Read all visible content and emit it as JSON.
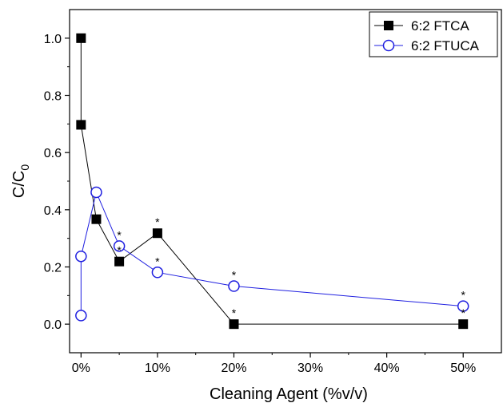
{
  "chart_data": {
    "type": "scatter",
    "title": "",
    "xlabel": "Cleaning Agent (%v/v)",
    "ylabel_main": "C/C",
    "ylabel_sub": "0",
    "xlim": [
      -1.5,
      55
    ],
    "ylim": [
      -0.1,
      1.1
    ],
    "x_ticks": [
      0,
      10,
      20,
      30,
      40,
      50
    ],
    "x_tick_labels": [
      "0%",
      "10%",
      "20%",
      "30%",
      "40%",
      "50%"
    ],
    "y_ticks": [
      0.0,
      0.2,
      0.4,
      0.6,
      0.8,
      1.0
    ],
    "y_tick_labels": [
      "0.0",
      "0.2",
      "0.4",
      "0.6",
      "0.8",
      "1.0"
    ],
    "grid": false,
    "legend_position": "top-right",
    "series": [
      {
        "name": "6:2 FTCA",
        "marker": "square-filled",
        "color": "#000000",
        "points": [
          {
            "x": 0,
            "y": 1.0,
            "star": false
          },
          {
            "x": 0,
            "y": 0.697,
            "star": false
          },
          {
            "x": 2,
            "y": 0.367,
            "star": false
          },
          {
            "x": 5,
            "y": 0.219,
            "star": true
          },
          {
            "x": 10,
            "y": 0.318,
            "star": true
          },
          {
            "x": 20,
            "y": 0.0,
            "star": true
          },
          {
            "x": 50,
            "y": 0.0,
            "star": true
          }
        ]
      },
      {
        "name": "6:2 FTUCA",
        "marker": "circle-open",
        "color": "#1f1fe0",
        "points": [
          {
            "x": 0,
            "y": 0.03,
            "star": false
          },
          {
            "x": 0,
            "y": 0.237,
            "star": false
          },
          {
            "x": 2,
            "y": 0.461,
            "star": false
          },
          {
            "x": 5,
            "y": 0.273,
            "star": true
          },
          {
            "x": 10,
            "y": 0.181,
            "star": true
          },
          {
            "x": 20,
            "y": 0.133,
            "star": true
          },
          {
            "x": 50,
            "y": 0.063,
            "star": true
          }
        ]
      }
    ],
    "significance_marker": "*"
  }
}
